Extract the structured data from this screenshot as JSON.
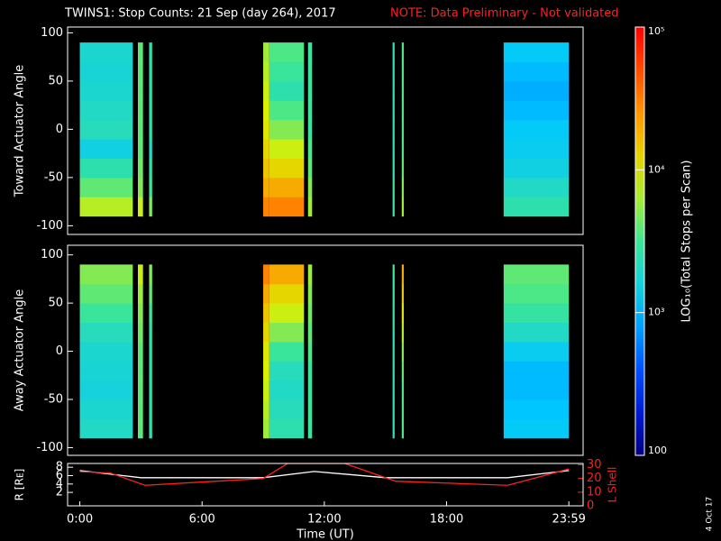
{
  "chart_data": [
    {
      "type": "heatmap",
      "title": "TWINS1: Stop Counts: 21 Sep (day 264), 2017",
      "note": "NOTE: Data Preliminary - Not validated",
      "ylabel": "Toward Actuator Angle",
      "xlim": [
        -0.6,
        24.7
      ],
      "ylim": [
        -109,
        106
      ],
      "yticks": [
        -100,
        -50,
        0,
        50,
        100
      ],
      "y_edges": [
        -90,
        -70,
        -50,
        -30,
        -10,
        10,
        30,
        50,
        70,
        90
      ],
      "segments": [
        {
          "start": 0,
          "end": 2.6,
          "values": [
            7000,
            4000,
            2500,
            1500,
            2200,
            2000,
            1800,
            1700,
            1800
          ]
        },
        {
          "start": 2.85,
          "end": 3.1,
          "values": [
            8000,
            5000,
            4500,
            4000,
            4000,
            4000,
            4000,
            4000,
            4000
          ]
        },
        {
          "start": 3.4,
          "end": 3.55,
          "values": [
            5000,
            3000,
            2500,
            2000,
            2500,
            2500,
            2500,
            2500,
            2500
          ]
        },
        {
          "start": 9.0,
          "end": 9.3,
          "values": [
            30000,
            20000,
            15000,
            12000,
            10000,
            9000,
            8000,
            7000,
            6000
          ]
        },
        {
          "start": 9.3,
          "end": 11.0,
          "values": [
            30000,
            20000,
            12000,
            8000,
            5000,
            3500,
            2500,
            3000,
            3500
          ]
        },
        {
          "start": 11.2,
          "end": 11.4,
          "values": [
            6000,
            5000,
            4000,
            3500,
            3000,
            3000,
            3000,
            3000,
            3000
          ]
        },
        {
          "start": 15.35,
          "end": 15.45,
          "values": [
            3000,
            2800,
            2600,
            2500,
            2500,
            2500,
            2500,
            2500,
            2500
          ]
        },
        {
          "start": 15.8,
          "end": 15.9,
          "values": [
            6000,
            5000,
            4000,
            3500,
            3500,
            3500,
            3500,
            3500,
            3500
          ]
        },
        {
          "start": 20.8,
          "end": 24,
          "values": [
            2500,
            2000,
            1500,
            1300,
            1200,
            1000,
            900,
            1000,
            1200
          ]
        }
      ]
    },
    {
      "type": "heatmap",
      "ylabel": "Away Actuator Angle",
      "xlim": [
        -0.6,
        24.7
      ],
      "ylim": [
        -108,
        110
      ],
      "yticks": [
        -100,
        -50,
        0,
        50,
        100
      ],
      "y_edges": [
        -90,
        -70,
        -50,
        -30,
        -10,
        10,
        30,
        50,
        70,
        90
      ],
      "segments": [
        {
          "start": 0,
          "end": 2.6,
          "values": [
            2000,
            1800,
            1600,
            1700,
            1800,
            2200,
            3000,
            4000,
            5000
          ]
        },
        {
          "start": 2.85,
          "end": 3.1,
          "values": [
            4000,
            4000,
            4000,
            4000,
            4000,
            4500,
            5000,
            6000,
            8000
          ]
        },
        {
          "start": 3.4,
          "end": 3.55,
          "values": [
            2500,
            2500,
            2500,
            2500,
            2500,
            2500,
            3000,
            4000,
            5000
          ]
        },
        {
          "start": 9.0,
          "end": 9.3,
          "values": [
            6000,
            7000,
            8000,
            9000,
            10000,
            12000,
            15000,
            20000,
            30000
          ]
        },
        {
          "start": 9.3,
          "end": 11.0,
          "values": [
            2500,
            2200,
            2000,
            2200,
            3000,
            5000,
            8000,
            12000,
            20000
          ]
        },
        {
          "start": 11.2,
          "end": 11.4,
          "values": [
            3000,
            3000,
            3000,
            3000,
            3500,
            4000,
            4500,
            5000,
            6000
          ]
        },
        {
          "start": 15.35,
          "end": 15.45,
          "values": [
            2500,
            2500,
            2500,
            2500,
            2500,
            2600,
            2800,
            3000,
            3000
          ]
        },
        {
          "start": 15.8,
          "end": 15.9,
          "values": [
            3500,
            3500,
            3500,
            4000,
            5000,
            7000,
            10000,
            15000,
            20000
          ]
        },
        {
          "start": 20.8,
          "end": 24,
          "values": [
            1200,
            1100,
            1000,
            1000,
            1300,
            2000,
            2800,
            3500,
            4000
          ]
        }
      ]
    },
    {
      "type": "line",
      "xlabel": "Time (UT)",
      "ylabel": "R [Rᴇ]",
      "y2label": "L Shell",
      "xlim": [
        -0.6,
        24.7
      ],
      "ylim": [
        -1.2,
        8.9
      ],
      "y2lim": [
        0,
        31
      ],
      "xticks": [
        {
          "value": 0,
          "label": "0:00"
        },
        {
          "value": 6,
          "label": "6:00"
        },
        {
          "value": 12,
          "label": "12:00"
        },
        {
          "value": 18,
          "label": "18:00"
        },
        {
          "value": 24,
          "label": "23:59"
        }
      ],
      "yticks": [
        2,
        4,
        6,
        8
      ],
      "y2ticks": [
        0,
        10,
        20,
        30
      ],
      "series": [
        {
          "name": "R",
          "color": "#ffffff",
          "x": [
            0,
            3,
            9,
            11.5,
            15,
            21,
            24
          ],
          "values": [
            7.2,
            5.5,
            5.5,
            7,
            5.5,
            5.5,
            7.2
          ]
        },
        {
          "name": "L Shell",
          "color": "#ff2020",
          "axis": "y2",
          "x": [
            0,
            1.5,
            3.2,
            9,
            10.2,
            13,
            15.5,
            21,
            24
          ],
          "values": [
            25,
            24,
            15,
            20,
            31,
            31,
            18,
            15,
            27
          ]
        }
      ]
    },
    {
      "type": "colorbar",
      "label": "LOG₁₀(Total Stops per Scan)",
      "clim": [
        100,
        100000
      ],
      "log": true,
      "ticks": [
        100,
        {
          "value": 1000,
          "label": "10³"
        },
        {
          "value": 10000,
          "label": "10⁴"
        },
        {
          "value": 100000,
          "label": "10⁵"
        }
      ]
    }
  ],
  "stamp": "4 Oct 17"
}
